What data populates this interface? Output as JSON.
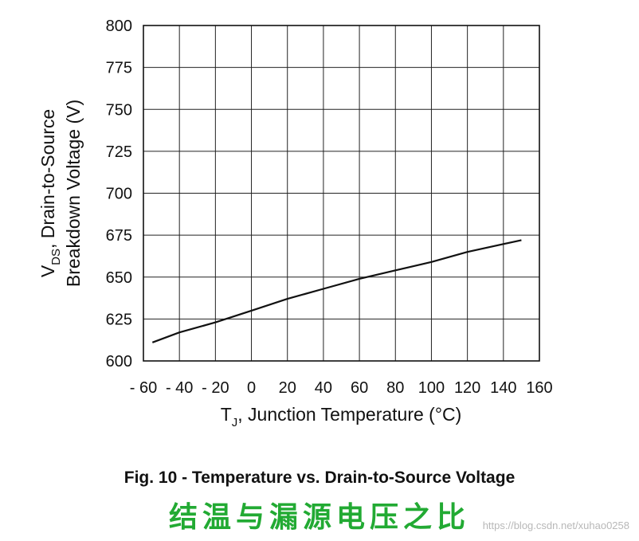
{
  "chart_data": {
    "type": "line",
    "xlabel": {
      "main": "T",
      "sub": "J",
      "rest": ", Junction Temperature (°C)"
    },
    "ylabel": {
      "line1_main": "V",
      "line1_sub": "DS",
      "line1_rest": ", Drain-to-Source",
      "line2": "Breakdown Voltage (V)"
    },
    "xlim": [
      -60,
      160
    ],
    "ylim": [
      600,
      800
    ],
    "x_ticks": [
      -60,
      -40,
      -20,
      0,
      20,
      40,
      60,
      80,
      100,
      120,
      140,
      160
    ],
    "x_tick_labels": [
      "- 60",
      "- 40",
      "- 20",
      "0",
      "20",
      "40",
      "60",
      "80",
      "100",
      "120",
      "140",
      "160"
    ],
    "y_ticks": [
      600,
      625,
      650,
      675,
      700,
      725,
      750,
      775,
      800
    ],
    "y_tick_labels": [
      "600",
      "625",
      "650",
      "675",
      "700",
      "725",
      "750",
      "775",
      "800"
    ],
    "grid": true,
    "series": [
      {
        "x": [
          -55,
          -40,
          -20,
          0,
          20,
          40,
          60,
          80,
          100,
          120,
          150
        ],
        "y": [
          611,
          617,
          623,
          630,
          637,
          643,
          649,
          654,
          659,
          665,
          672
        ]
      }
    ],
    "caption": "Fig. 10 - Temperature vs. Drain-to-Source Voltage"
  },
  "banner_text": "结温与漏源电压之比",
  "watermark": "https://blog.csdn.net/xuhao0258"
}
